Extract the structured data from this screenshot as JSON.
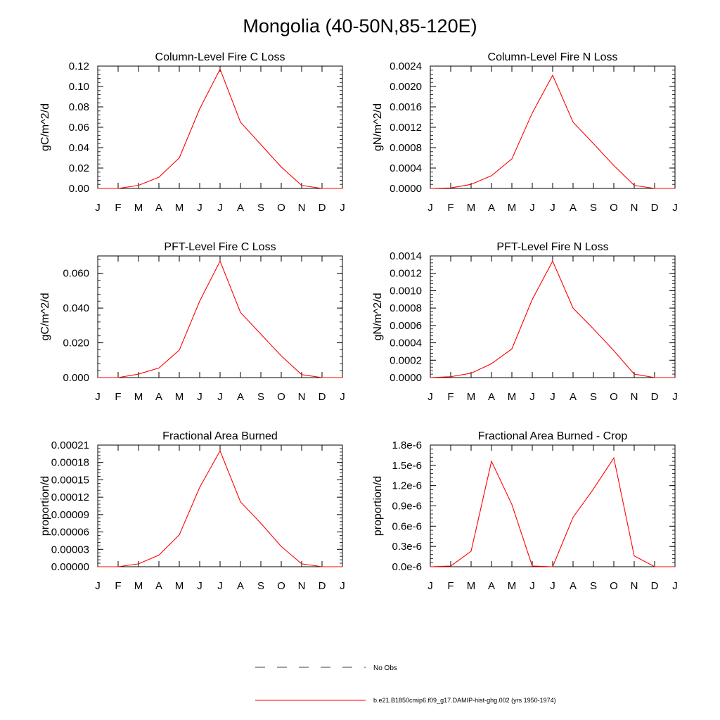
{
  "title": "Mongolia (40-50N,85-120E)",
  "x_tick_labels": [
    "J",
    "F",
    "M",
    "A",
    "M",
    "J",
    "J",
    "A",
    "S",
    "O",
    "N",
    "D",
    "J"
  ],
  "colors": {
    "model_line": "#ff0000",
    "axis": "#000000"
  },
  "legend": {
    "no_obs_label": "No Obs",
    "model_label": "b.e21.B1850cmip6.f09_g17.DAMIP-hist-ghg.002 (yrs 1950-1974)"
  },
  "chart_data": [
    {
      "type": "line",
      "title": "Column-Level Fire C Loss",
      "ylabel": "gC/m^2/d",
      "ylim": [
        0,
        0.12
      ],
      "yticks": [
        0,
        0.02,
        0.04,
        0.06,
        0.08,
        0.1,
        0.12
      ],
      "ytick_labels": [
        "0.00",
        "0.02",
        "0.04",
        "0.06",
        "0.08",
        "0.10",
        "0.12"
      ],
      "x": [
        "J",
        "F",
        "M",
        "A",
        "M",
        "J",
        "J",
        "A",
        "S",
        "O",
        "N",
        "D",
        "J"
      ],
      "series": [
        {
          "values": [
            0.0,
            0.0,
            0.003,
            0.011,
            0.03,
            0.078,
            0.117,
            0.065,
            0.043,
            0.021,
            0.003,
            0.0,
            0.0
          ]
        }
      ]
    },
    {
      "type": "line",
      "title": "Column-Level Fire N Loss",
      "ylabel": "gN/m^2/d",
      "ylim": [
        0,
        0.0024
      ],
      "yticks": [
        0,
        0.0004,
        0.0008,
        0.0012,
        0.0016,
        0.002,
        0.0024
      ],
      "ytick_labels": [
        "0.0000",
        "0.0004",
        "0.0008",
        "0.0012",
        "0.0016",
        "0.0020",
        "0.0024"
      ],
      "x": [
        "J",
        "F",
        "M",
        "A",
        "M",
        "J",
        "J",
        "A",
        "S",
        "O",
        "N",
        "D",
        "J"
      ],
      "series": [
        {
          "values": [
            0.0,
            1e-05,
            8e-05,
            0.00025,
            0.00058,
            0.00148,
            0.00222,
            0.0013,
            0.00088,
            0.00045,
            6e-05,
            0.0,
            0.0
          ]
        }
      ]
    },
    {
      "type": "line",
      "title": "PFT-Level Fire C Loss",
      "ylabel": "gC/m^2/d",
      "ylim": [
        0,
        0.07
      ],
      "yticks": [
        0,
        0.02,
        0.04,
        0.06
      ],
      "ytick_labels": [
        "0.000",
        "0.020",
        "0.040",
        "0.060"
      ],
      "x": [
        "J",
        "F",
        "M",
        "A",
        "M",
        "J",
        "J",
        "A",
        "S",
        "O",
        "N",
        "D",
        "J"
      ],
      "series": [
        {
          "values": [
            0.0,
            0.0,
            0.002,
            0.0055,
            0.0158,
            0.044,
            0.067,
            0.0375,
            0.025,
            0.0125,
            0.0017,
            0.0,
            0.0
          ]
        }
      ]
    },
    {
      "type": "line",
      "title": "PFT-Level Fire N Loss",
      "ylabel": "gN/m^2/d",
      "ylim": [
        0,
        0.0014
      ],
      "yticks": [
        0,
        0.0002,
        0.0004,
        0.0006,
        0.0008,
        0.001,
        0.0012,
        0.0014
      ],
      "ytick_labels": [
        "0.0000",
        "0.0002",
        "0.0004",
        "0.0006",
        "0.0008",
        "0.0010",
        "0.0012",
        "0.0014"
      ],
      "x": [
        "J",
        "F",
        "M",
        "A",
        "M",
        "J",
        "J",
        "A",
        "S",
        "O",
        "N",
        "D",
        "J"
      ],
      "series": [
        {
          "values": [
            0.0,
            1e-05,
            5e-05,
            0.00016,
            0.00033,
            0.0009,
            0.00134,
            0.0008,
            0.00056,
            0.00031,
            4e-05,
            0.0,
            0.0
          ]
        }
      ]
    },
    {
      "type": "line",
      "title": "Fractional Area Burned",
      "ylabel": "proportion/d",
      "ylim": [
        0,
        0.00021
      ],
      "yticks": [
        0,
        3e-05,
        6e-05,
        9e-05,
        0.00012,
        0.00015,
        0.00018,
        0.00021
      ],
      "ytick_labels": [
        "0.00000",
        "0.00003",
        "0.00006",
        "0.00009",
        "0.00012",
        "0.00015",
        "0.00018",
        "0.00021"
      ],
      "x": [
        "J",
        "F",
        "M",
        "A",
        "M",
        "J",
        "J",
        "A",
        "S",
        "O",
        "N",
        "D",
        "J"
      ],
      "series": [
        {
          "values": [
            0.0,
            0.0,
            5e-06,
            2e-05,
            5.5e-05,
            0.000137,
            0.0002,
            0.000112,
            7.5e-05,
            3.5e-05,
            5e-06,
            0.0,
            0.0
          ]
        }
      ]
    },
    {
      "type": "line",
      "title": "Fractional Area Burned - Crop",
      "ylabel": "proportion/d",
      "ylim": [
        0,
        1.8e-06
      ],
      "yticks": [
        0,
        3e-07,
        6e-07,
        9e-07,
        1.2e-06,
        1.5e-06,
        1.8e-06
      ],
      "ytick_labels": [
        "0.0e-6",
        "0.3e-6",
        "0.6e-6",
        "0.9e-6",
        "1.2e-6",
        "1.5e-6",
        "1.8e-6"
      ],
      "x": [
        "J",
        "F",
        "M",
        "A",
        "M",
        "J",
        "J",
        "A",
        "S",
        "O",
        "N",
        "D",
        "J"
      ],
      "series": [
        {
          "values": [
            0.0,
            1e-08,
            2.3e-07,
            1.56e-06,
            9.2e-07,
            1e-08,
            0.0,
            7.3e-07,
            1.15e-06,
            1.61e-06,
            1.6e-07,
            0.0,
            0.0
          ]
        }
      ]
    }
  ]
}
